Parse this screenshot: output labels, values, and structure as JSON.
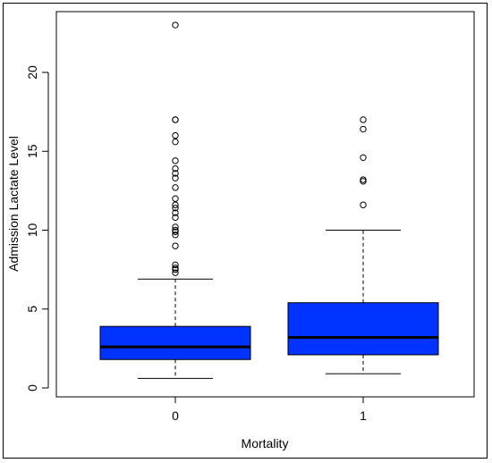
{
  "chart_data": {
    "type": "boxplot",
    "xlabel": "Mortality",
    "ylabel": "Admission Lactate Level",
    "categories": [
      "0",
      "1"
    ],
    "yticks": [
      "0",
      "5",
      "10",
      "15",
      "20"
    ],
    "ylim": [
      0,
      23.5
    ],
    "box_color": "#0033ff",
    "series": [
      {
        "category": "0",
        "whisker_low": 0.6,
        "q1": 1.8,
        "median": 2.6,
        "q3": 3.9,
        "whisker_high": 6.9,
        "outliers": [
          7.3,
          7.5,
          7.6,
          7.8,
          9.0,
          9.7,
          9.9,
          10.0,
          10.2,
          10.8,
          11.1,
          11.4,
          11.6,
          12.0,
          12.7,
          13.3,
          13.6,
          13.9,
          14.4,
          15.6,
          16.0,
          17.0,
          17.0,
          23.0
        ]
      },
      {
        "category": "1",
        "whisker_low": 0.9,
        "q1": 2.1,
        "median": 3.2,
        "q3": 5.4,
        "whisker_high": 10.0,
        "outliers": [
          11.6,
          13.1,
          13.2,
          14.6,
          16.4,
          17.0
        ]
      }
    ],
    "grid": false,
    "legend": "none"
  }
}
